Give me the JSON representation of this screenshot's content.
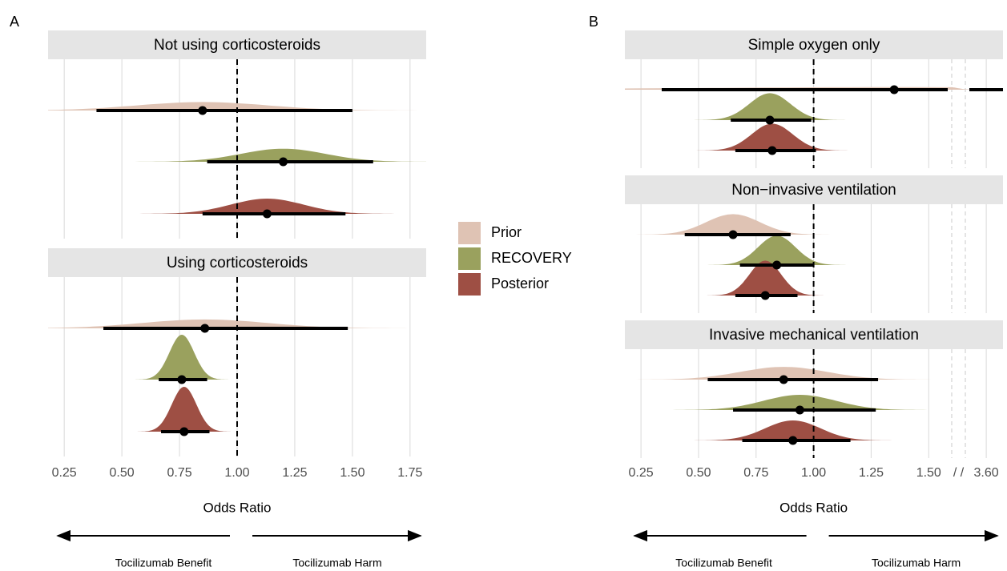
{
  "legend": {
    "names": [
      "Prior",
      "RECOVERY",
      "Posterior"
    ],
    "colors": [
      "#dfc3b4",
      "#9aa15e",
      "#9e4f44"
    ]
  },
  "chart_data": [
    {
      "type": "forest",
      "panel": "A",
      "xlabel": "Odds Ratio",
      "xlim": [
        0.18,
        1.82
      ],
      "xticks": [
        0.25,
        {
          "value": 0.5,
          "label": "0.50"
        },
        0.75,
        {
          "value": 1,
          "label": "1.00"
        },
        1.25,
        {
          "value": 1.5,
          "label": "1.50"
        },
        1.75
      ],
      "grid": true,
      "vline": 1,
      "annotations": [
        "Tocilizumab Benefit",
        "Tocilizumab Harm"
      ],
      "facets": [
        {
          "title": "Not using corticosteroids",
          "estimates": [
            0.85,
            1.2,
            1.13
          ],
          "lower": [
            0.39,
            0.87,
            0.85
          ],
          "upper": [
            1.5,
            1.59,
            1.47
          ]
        },
        {
          "title": "Using corticosteroids",
          "estimates": [
            0.86,
            0.76,
            0.77
          ],
          "lower": [
            0.42,
            0.66,
            0.67
          ],
          "upper": [
            1.48,
            0.87,
            0.88
          ]
        }
      ]
    },
    {
      "type": "forest",
      "panel": "B",
      "xlabel": "Odds Ratio",
      "xlim": [
        0.18,
        4.0
      ],
      "xbreak": [
        1.6,
        3.1
      ],
      "break_label": "/ /",
      "xticks": [
        0.25,
        {
          "value": 0.5,
          "label": "0.50"
        },
        0.75,
        {
          "value": 1,
          "label": "1.00"
        },
        1.25,
        {
          "value": 1.5,
          "label": "1.50"
        },
        {
          "value": 3.6,
          "label": "3.60"
        }
      ],
      "grid": true,
      "vline": 1,
      "annotations": [
        "Tocilizumab Benefit",
        "Tocilizumab Harm"
      ],
      "facets": [
        {
          "title": "Simple oxygen only",
          "estimates": [
            1.35,
            0.81,
            0.82
          ],
          "lower": [
            0.34,
            0.64,
            0.66
          ],
          "upper": [
            4.0,
            0.99,
            1.01
          ]
        },
        {
          "title": "Non−invasive ventilation",
          "estimates": [
            0.65,
            0.84,
            0.79
          ],
          "lower": [
            0.44,
            0.68,
            0.66
          ],
          "upper": [
            0.9,
            1.0,
            0.93
          ]
        },
        {
          "title": "Invasive mechanical ventilation",
          "estimates": [
            0.87,
            0.94,
            0.91
          ],
          "lower": [
            0.54,
            0.65,
            0.69
          ],
          "upper": [
            1.28,
            1.27,
            1.16
          ]
        }
      ]
    }
  ]
}
